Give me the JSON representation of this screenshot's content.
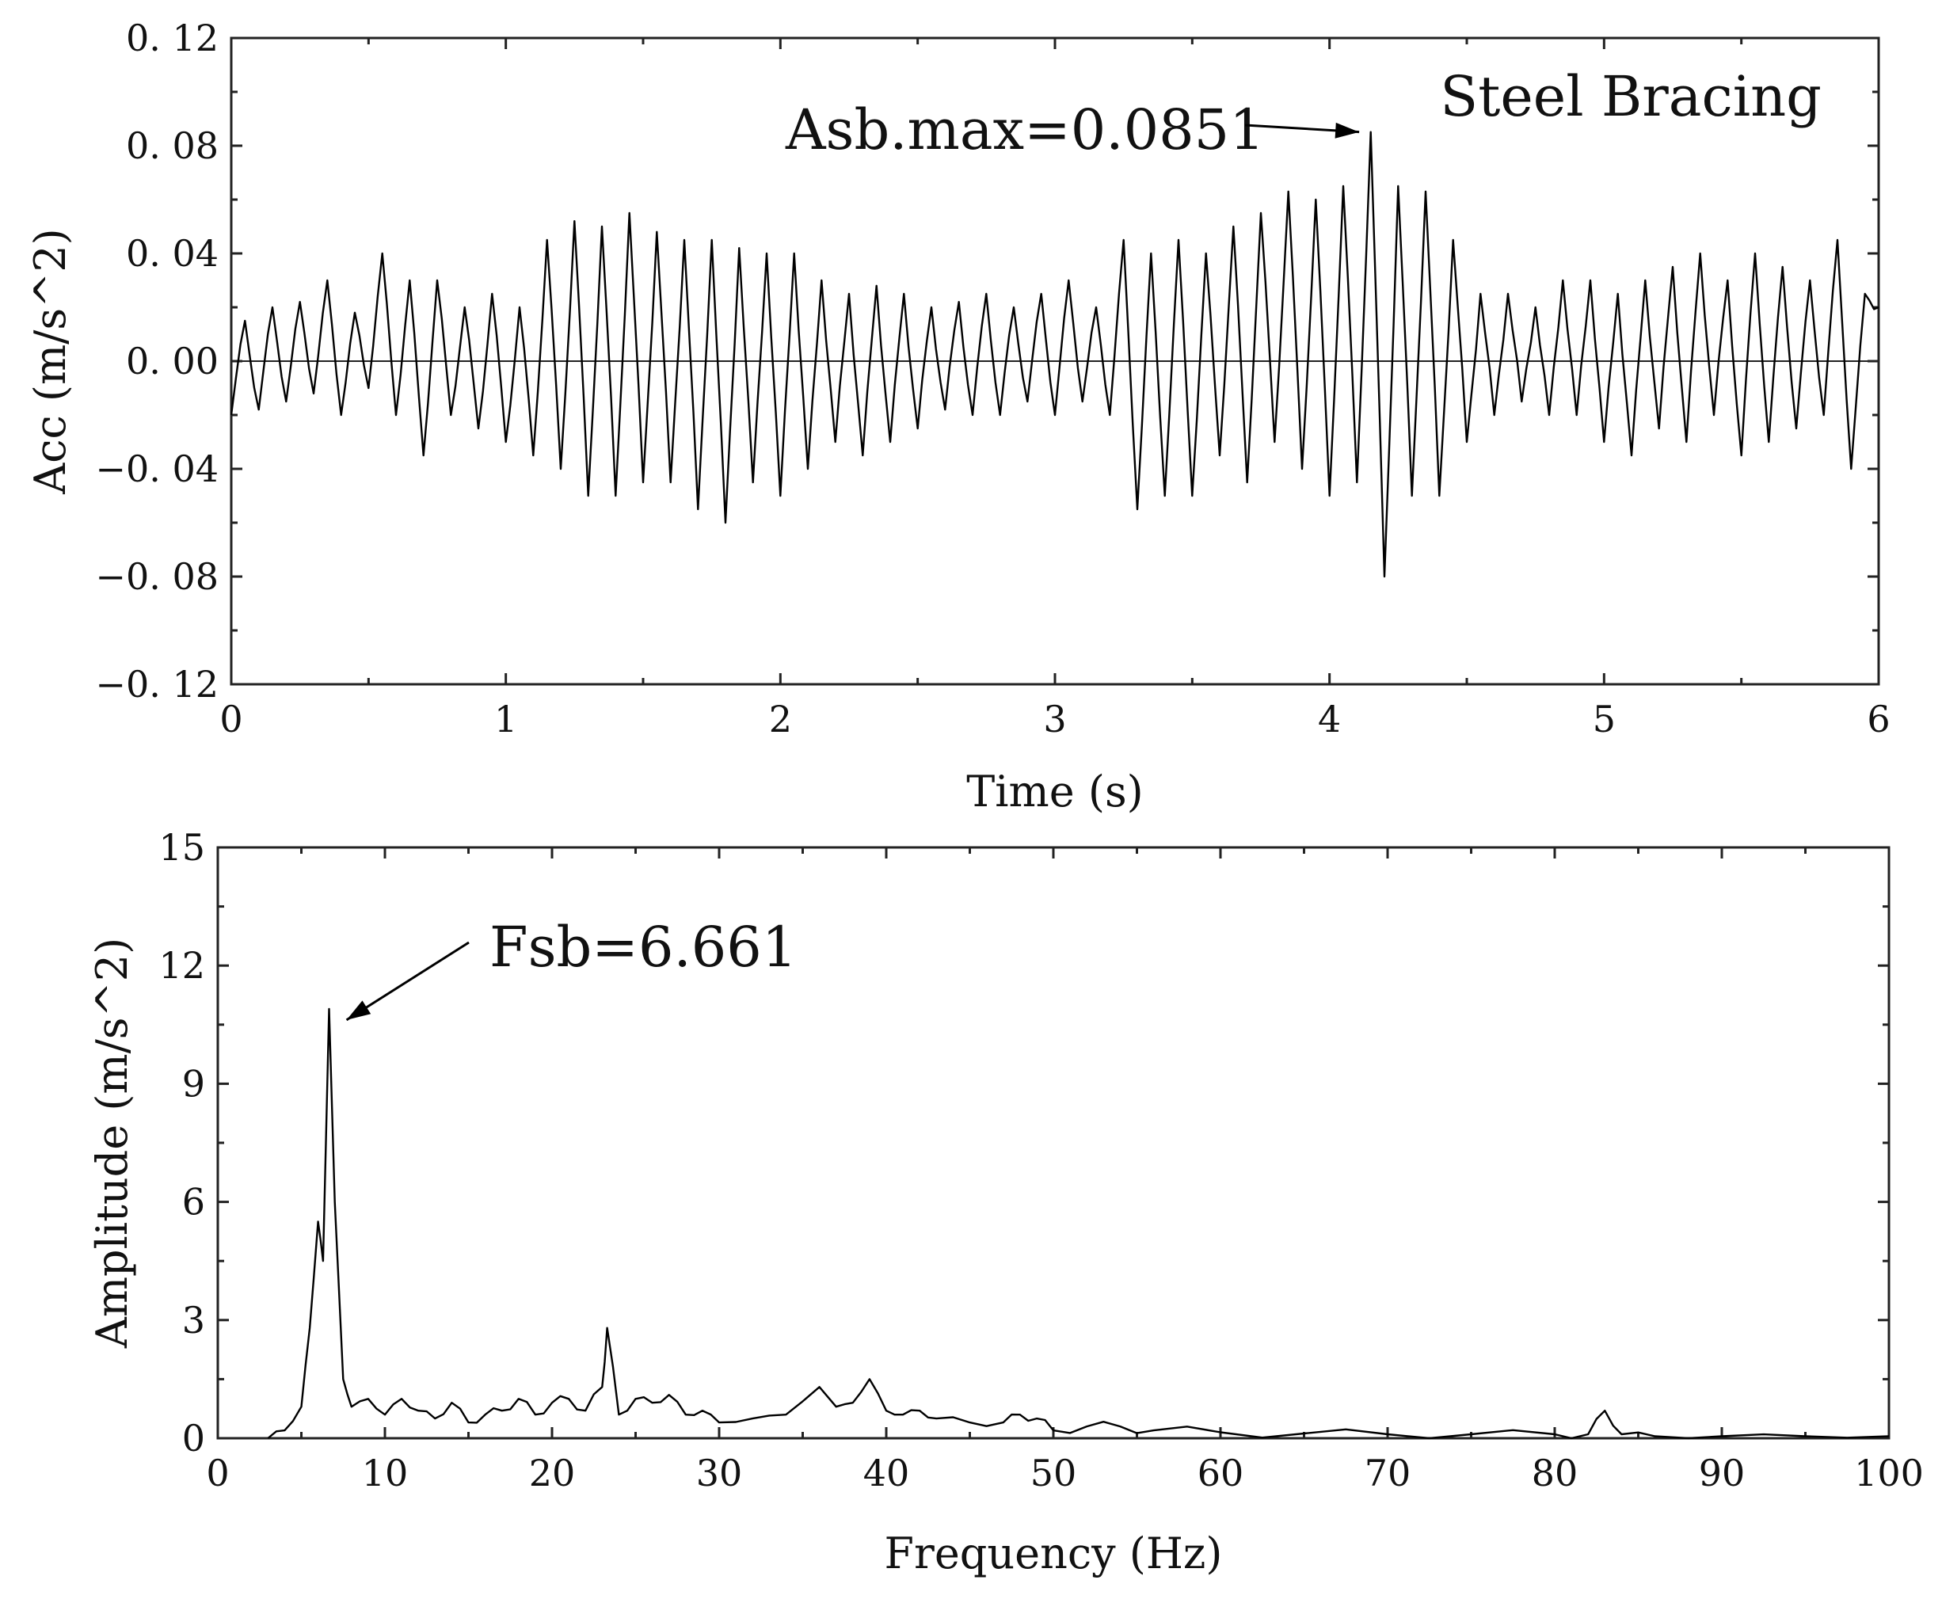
{
  "chart_data": [
    {
      "id": "acceleration",
      "type": "line",
      "title": "Steel Bracing",
      "xlabel": "Time (s)",
      "ylabel": "Acc (m/s^2)",
      "xlim": [
        0,
        6
      ],
      "ylim": [
        -0.12,
        0.12
      ],
      "x_ticks": [
        0,
        1,
        2,
        3,
        4,
        5,
        6
      ],
      "x_tick_labels": [
        "0",
        "1",
        "2",
        "3",
        "4",
        "5",
        "6"
      ],
      "y_ticks": [
        0.12,
        0.08,
        0.04,
        0.0,
        -0.04,
        -0.08,
        -0.12
      ],
      "y_tick_labels": [
        "0. 12",
        "0. 08",
        "0. 04",
        "0. 00",
        "−0. 04",
        "−0. 08",
        "−0. 12"
      ],
      "zero_line": true,
      "annotation": {
        "text": "Asb.max=0.0851",
        "x": 4.16,
        "y": 0.0851
      },
      "series": [
        {
          "name": "acceleration",
          "x": [
            0,
            0.05,
            0.1,
            0.15,
            0.2,
            0.25,
            0.3,
            0.35,
            0.4,
            0.45,
            0.5,
            0.55,
            0.6,
            0.65,
            0.7,
            0.75,
            0.8,
            0.85,
            0.9,
            0.95,
            1.0,
            1.05,
            1.1,
            1.15,
            1.2,
            1.25,
            1.3,
            1.35,
            1.4,
            1.45,
            1.5,
            1.55,
            1.6,
            1.65,
            1.7,
            1.75,
            1.8,
            1.85,
            1.9,
            1.95,
            2.0,
            2.05,
            2.1,
            2.15,
            2.2,
            2.25,
            2.3,
            2.35,
            2.4,
            2.45,
            2.5,
            2.55,
            2.6,
            2.65,
            2.7,
            2.75,
            2.8,
            2.85,
            2.9,
            2.95,
            3.0,
            3.05,
            3.1,
            3.15,
            3.2,
            3.25,
            3.3,
            3.35,
            3.4,
            3.45,
            3.5,
            3.55,
            3.6,
            3.65,
            3.7,
            3.75,
            3.8,
            3.85,
            3.9,
            3.95,
            4.0,
            4.05,
            4.1,
            4.15,
            4.2,
            4.25,
            4.3,
            4.35,
            4.4,
            4.45,
            4.5,
            4.55,
            4.6,
            4.65,
            4.7,
            4.75,
            4.8,
            4.85,
            4.9,
            4.95,
            5.0,
            5.05,
            5.1,
            5.15,
            5.2,
            5.25,
            5.3,
            5.35,
            5.4,
            5.45,
            5.5,
            5.55,
            5.6,
            5.65,
            5.7,
            5.75,
            5.8,
            5.85,
            5.9,
            5.95,
            6.0
          ],
          "values": [
            -0.02,
            0.015,
            -0.018,
            0.02,
            -0.015,
            0.022,
            -0.012,
            0.03,
            -0.02,
            0.018,
            -0.01,
            0.04,
            -0.02,
            0.03,
            -0.035,
            0.03,
            -0.02,
            0.02,
            -0.025,
            0.025,
            -0.03,
            0.02,
            -0.035,
            0.045,
            -0.04,
            0.052,
            -0.05,
            0.05,
            -0.05,
            0.055,
            -0.045,
            0.048,
            -0.045,
            0.045,
            -0.055,
            0.045,
            -0.06,
            0.042,
            -0.045,
            0.04,
            -0.05,
            0.04,
            -0.04,
            0.03,
            -0.03,
            0.025,
            -0.035,
            0.028,
            -0.03,
            0.025,
            -0.025,
            0.02,
            -0.018,
            0.022,
            -0.02,
            0.025,
            -0.02,
            0.02,
            -0.015,
            0.025,
            -0.02,
            0.03,
            -0.015,
            0.02,
            -0.02,
            0.045,
            -0.055,
            0.04,
            -0.05,
            0.045,
            -0.05,
            0.04,
            -0.035,
            0.05,
            -0.045,
            0.055,
            -0.03,
            0.063,
            -0.04,
            0.06,
            -0.05,
            0.065,
            -0.045,
            0.0851,
            -0.08,
            0.065,
            -0.05,
            0.063,
            -0.05,
            0.045,
            -0.03,
            0.025,
            -0.02,
            0.025,
            -0.015,
            0.02,
            -0.02,
            0.03,
            -0.02,
            0.03,
            -0.03,
            0.025,
            -0.035,
            0.03,
            -0.025,
            0.035,
            -0.03,
            0.04,
            -0.02,
            0.03,
            -0.035,
            0.04,
            -0.03,
            0.035,
            -0.025,
            0.03,
            -0.02,
            0.045,
            -0.04,
            0.025,
            0.02
          ]
        }
      ]
    },
    {
      "id": "spectrum",
      "type": "line",
      "xlabel": "Frequency (Hz)",
      "ylabel": "Amplitude (m/s^2)",
      "xlim": [
        0,
        100
      ],
      "ylim": [
        0,
        15
      ],
      "x_ticks": [
        0,
        10,
        20,
        30,
        40,
        50,
        60,
        70,
        80,
        90,
        100
      ],
      "x_tick_labels": [
        "0",
        "10",
        "20",
        "30",
        "40",
        "50",
        "60",
        "70",
        "80",
        "90",
        "100"
      ],
      "y_ticks": [
        15,
        12,
        9,
        6,
        3,
        0
      ],
      "y_tick_labels": [
        "15",
        "12",
        "9",
        "6",
        "3",
        "0"
      ],
      "annotation": {
        "text": "Fsb=6.661",
        "x": 6.661,
        "y": 10.9
      },
      "series": [
        {
          "name": "amplitude",
          "x": [
            3,
            4,
            5,
            5.5,
            6,
            6.3,
            6.661,
            7,
            7.5,
            8,
            9,
            10,
            11,
            12,
            13,
            14,
            15,
            16,
            17,
            18,
            19,
            20,
            21,
            22,
            23,
            23.3,
            24,
            25,
            26,
            27,
            28,
            29,
            30,
            32,
            34,
            36,
            37,
            38,
            39,
            40,
            41,
            42,
            43,
            45,
            47,
            48,
            49,
            50,
            52,
            54,
            56,
            60,
            65,
            70,
            75,
            80,
            82,
            83,
            84,
            86,
            90,
            95,
            100
          ],
          "values": [
            0,
            0.2,
            0.8,
            2.8,
            5.5,
            4.5,
            10.9,
            6,
            1.5,
            0.8,
            1.0,
            0.6,
            1.0,
            0.7,
            0.5,
            0.9,
            0.4,
            0.6,
            0.7,
            1.0,
            0.6,
            0.9,
            1.0,
            0.7,
            1.3,
            2.8,
            0.6,
            1.0,
            0.9,
            1.1,
            0.6,
            0.7,
            0.4,
            0.5,
            0.6,
            1.3,
            0.8,
            0.9,
            1.5,
            0.7,
            0.6,
            0.7,
            0.5,
            0.4,
            0.4,
            0.6,
            0.5,
            0.2,
            0.3,
            0.3,
            0.2,
            0.15,
            0.12,
            0.1,
            0.1,
            0.1,
            0.1,
            0.7,
            0.1,
            0.05,
            0.05,
            0.05,
            0.05
          ]
        }
      ]
    }
  ]
}
